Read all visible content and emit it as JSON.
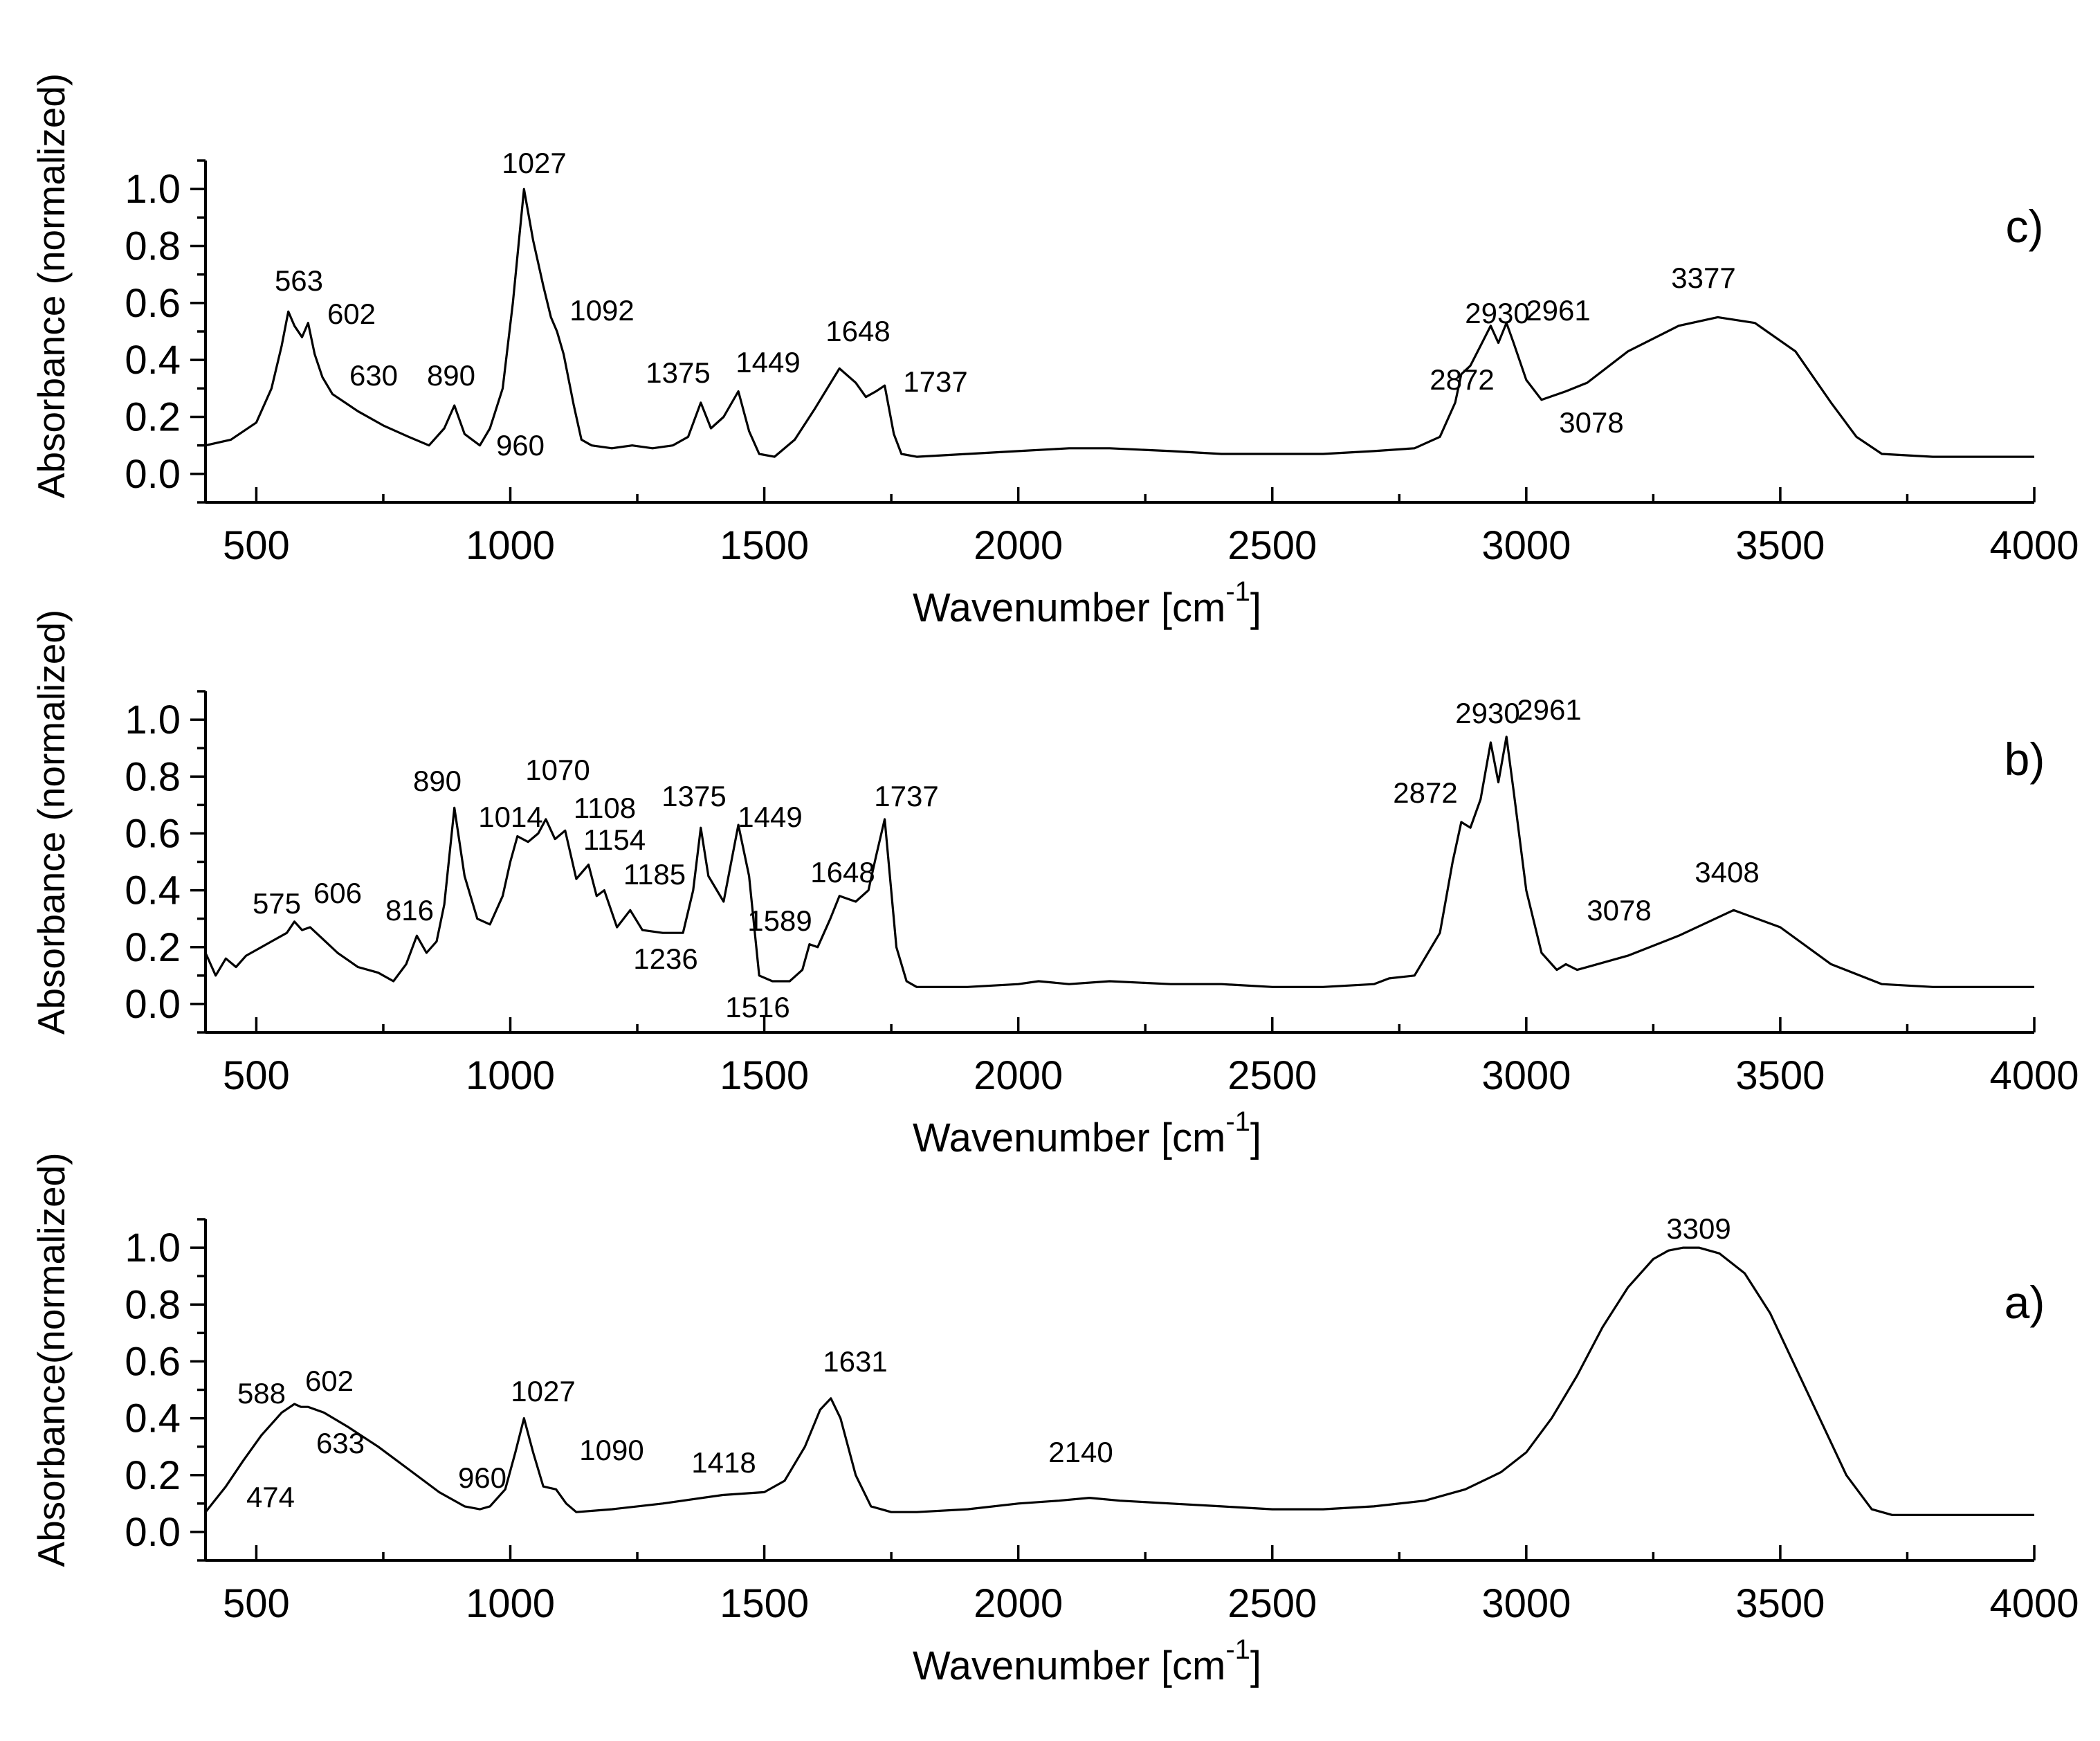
{
  "chart_data": [
    {
      "type": "line",
      "panel": "c)",
      "xlabel_main": "Wavenumber [cm",
      "xlabel_sup": "-1",
      "xlabel_end": "]",
      "ylabel": "Absorbance (normalized)",
      "xlim": [
        400,
        4000
      ],
      "ylim": [
        -0.1,
        1.1
      ],
      "xticks": [
        500,
        1000,
        1500,
        2000,
        2500,
        3000,
        3500,
        4000
      ],
      "yticks": [
        0.0,
        0.2,
        0.4,
        0.6,
        0.8,
        1.0
      ],
      "ytick_labels": [
        "0.0",
        "0.2",
        "0.4",
        "0.6",
        "0.8",
        "1.0"
      ],
      "series": [
        {
          "name": "c",
          "x": [
            400,
            450,
            500,
            530,
            550,
            563,
            575,
            590,
            602,
            615,
            630,
            650,
            700,
            750,
            800,
            840,
            870,
            890,
            910,
            940,
            960,
            985,
            1005,
            1027,
            1045,
            1065,
            1080,
            1092,
            1105,
            1125,
            1140,
            1160,
            1200,
            1240,
            1280,
            1320,
            1350,
            1375,
            1395,
            1420,
            1449,
            1470,
            1490,
            1520,
            1560,
            1600,
            1648,
            1680,
            1700,
            1720,
            1737,
            1755,
            1770,
            1800,
            1900,
            2000,
            2100,
            2180,
            2300,
            2400,
            2500,
            2600,
            2700,
            2780,
            2830,
            2860,
            2872,
            2890,
            2910,
            2930,
            2945,
            2961,
            2975,
            3000,
            3030,
            3078,
            3120,
            3200,
            3300,
            3377,
            3450,
            3530,
            3600,
            3650,
            3700,
            3800,
            4000
          ],
          "y": [
            0.1,
            0.12,
            0.18,
            0.3,
            0.45,
            0.57,
            0.52,
            0.48,
            0.53,
            0.42,
            0.34,
            0.28,
            0.22,
            0.17,
            0.13,
            0.1,
            0.16,
            0.24,
            0.14,
            0.1,
            0.16,
            0.3,
            0.6,
            1.0,
            0.82,
            0.66,
            0.55,
            0.5,
            0.42,
            0.24,
            0.12,
            0.1,
            0.09,
            0.1,
            0.09,
            0.1,
            0.13,
            0.25,
            0.16,
            0.2,
            0.29,
            0.15,
            0.07,
            0.06,
            0.12,
            0.23,
            0.37,
            0.32,
            0.27,
            0.29,
            0.31,
            0.14,
            0.07,
            0.06,
            0.07,
            0.08,
            0.09,
            0.09,
            0.08,
            0.07,
            0.07,
            0.07,
            0.08,
            0.09,
            0.13,
            0.25,
            0.35,
            0.38,
            0.45,
            0.52,
            0.46,
            0.53,
            0.46,
            0.33,
            0.26,
            0.29,
            0.32,
            0.43,
            0.52,
            0.55,
            0.53,
            0.43,
            0.25,
            0.13,
            0.07,
            0.06,
            0.06
          ]
        }
      ],
      "annotations": [
        {
          "label": "563"
        },
        {
          "label": "602"
        },
        {
          "label": "630"
        },
        {
          "label": "890"
        },
        {
          "label": "960"
        },
        {
          "label": "1027"
        },
        {
          "label": "1092"
        },
        {
          "label": "1375"
        },
        {
          "label": "1449"
        },
        {
          "label": "1648"
        },
        {
          "label": "1737"
        },
        {
          "label": "2872"
        },
        {
          "label": "2930"
        },
        {
          "label": "2961"
        },
        {
          "label": "3078"
        },
        {
          "label": "3377"
        }
      ]
    },
    {
      "type": "line",
      "panel": "b)",
      "xlabel_main": "Wavenumber [cm",
      "xlabel_sup": "-1",
      "xlabel_end": "]",
      "ylabel": "Absorbance (normalized)",
      "xlim": [
        400,
        4000
      ],
      "ylim": [
        -0.1,
        1.1
      ],
      "xticks": [
        500,
        1000,
        1500,
        2000,
        2500,
        3000,
        3500,
        4000
      ],
      "yticks": [
        0.0,
        0.2,
        0.4,
        0.6,
        0.8,
        1.0
      ],
      "ytick_labels": [
        "0.0",
        "0.2",
        "0.4",
        "0.6",
        "0.8",
        "1.0"
      ],
      "series": [
        {
          "name": "b",
          "x": [
            400,
            420,
            440,
            460,
            480,
            500,
            530,
            560,
            575,
            590,
            606,
            630,
            660,
            700,
            740,
            770,
            795,
            816,
            835,
            855,
            870,
            890,
            910,
            935,
            960,
            985,
            1000,
            1014,
            1035,
            1055,
            1070,
            1088,
            1108,
            1130,
            1154,
            1170,
            1185,
            1210,
            1236,
            1260,
            1300,
            1340,
            1360,
            1375,
            1390,
            1420,
            1449,
            1470,
            1490,
            1516,
            1550,
            1575,
            1589,
            1605,
            1630,
            1648,
            1680,
            1705,
            1720,
            1737,
            1760,
            1780,
            1800,
            1900,
            2000,
            2040,
            2100,
            2180,
            2300,
            2400,
            2500,
            2600,
            2700,
            2730,
            2780,
            2830,
            2855,
            2872,
            2890,
            2910,
            2930,
            2945,
            2961,
            2975,
            3000,
            3030,
            3060,
            3078,
            3100,
            3200,
            3300,
            3408,
            3500,
            3600,
            3700,
            3800,
            4000
          ],
          "y": [
            0.18,
            0.1,
            0.16,
            0.13,
            0.17,
            0.19,
            0.22,
            0.25,
            0.29,
            0.26,
            0.27,
            0.23,
            0.18,
            0.13,
            0.11,
            0.08,
            0.14,
            0.24,
            0.18,
            0.22,
            0.35,
            0.69,
            0.45,
            0.3,
            0.28,
            0.38,
            0.5,
            0.59,
            0.57,
            0.6,
            0.65,
            0.58,
            0.61,
            0.44,
            0.49,
            0.38,
            0.4,
            0.27,
            0.33,
            0.26,
            0.25,
            0.25,
            0.4,
            0.62,
            0.45,
            0.36,
            0.63,
            0.45,
            0.1,
            0.08,
            0.08,
            0.12,
            0.21,
            0.2,
            0.3,
            0.38,
            0.36,
            0.4,
            0.52,
            0.65,
            0.2,
            0.08,
            0.06,
            0.06,
            0.07,
            0.08,
            0.07,
            0.08,
            0.07,
            0.07,
            0.06,
            0.06,
            0.07,
            0.09,
            0.1,
            0.25,
            0.5,
            0.64,
            0.62,
            0.72,
            0.92,
            0.78,
            0.94,
            0.75,
            0.4,
            0.18,
            0.12,
            0.14,
            0.12,
            0.17,
            0.24,
            0.33,
            0.27,
            0.14,
            0.07,
            0.06,
            0.06
          ]
        }
      ],
      "annotations": [
        {
          "label": "575"
        },
        {
          "label": "606"
        },
        {
          "label": "816"
        },
        {
          "label": "890"
        },
        {
          "label": "1014"
        },
        {
          "label": "1070"
        },
        {
          "label": "1108"
        },
        {
          "label": "1154"
        },
        {
          "label": "1185"
        },
        {
          "label": "1236"
        },
        {
          "label": "1375"
        },
        {
          "label": "1449"
        },
        {
          "label": "1516"
        },
        {
          "label": "1589"
        },
        {
          "label": "1648"
        },
        {
          "label": "1737"
        },
        {
          "label": "2872"
        },
        {
          "label": "2930"
        },
        {
          "label": "2961"
        },
        {
          "label": "3078"
        },
        {
          "label": "3408"
        }
      ]
    },
    {
      "type": "line",
      "panel": "a)",
      "xlabel_main": "Wavenumber [cm",
      "xlabel_sup": "-1",
      "xlabel_end": "]",
      "ylabel": "Absorbance(normalized)",
      "xlim": [
        400,
        4000
      ],
      "ylim": [
        -0.1,
        1.1
      ],
      "xticks": [
        500,
        1000,
        1500,
        2000,
        2500,
        3000,
        3500,
        4000
      ],
      "yticks": [
        0.0,
        0.2,
        0.4,
        0.6,
        0.8,
        1.0
      ],
      "ytick_labels": [
        "0.0",
        "0.2",
        "0.4",
        "0.6",
        "0.8",
        "1.0"
      ],
      "series": [
        {
          "name": "a",
          "x": [
            400,
            440,
            474,
            510,
            550,
            575,
            588,
            602,
            633,
            680,
            740,
            800,
            860,
            910,
            940,
            960,
            990,
            1010,
            1027,
            1045,
            1065,
            1090,
            1110,
            1130,
            1200,
            1300,
            1418,
            1500,
            1540,
            1580,
            1610,
            1631,
            1650,
            1680,
            1710,
            1750,
            1800,
            1900,
            2000,
            2080,
            2140,
            2200,
            2300,
            2400,
            2500,
            2600,
            2700,
            2800,
            2880,
            2950,
            3000,
            3050,
            3100,
            3150,
            3200,
            3250,
            3280,
            3309,
            3340,
            3380,
            3430,
            3480,
            3530,
            3580,
            3630,
            3680,
            3720,
            3800,
            4000
          ],
          "y": [
            0.07,
            0.16,
            0.25,
            0.34,
            0.42,
            0.45,
            0.44,
            0.44,
            0.42,
            0.37,
            0.3,
            0.22,
            0.14,
            0.09,
            0.08,
            0.09,
            0.15,
            0.28,
            0.4,
            0.28,
            0.16,
            0.15,
            0.1,
            0.07,
            0.08,
            0.1,
            0.13,
            0.14,
            0.18,
            0.3,
            0.43,
            0.47,
            0.4,
            0.2,
            0.09,
            0.07,
            0.07,
            0.08,
            0.1,
            0.11,
            0.12,
            0.11,
            0.1,
            0.09,
            0.08,
            0.08,
            0.09,
            0.11,
            0.15,
            0.21,
            0.28,
            0.4,
            0.55,
            0.72,
            0.86,
            0.96,
            0.99,
            1.0,
            1.0,
            0.98,
            0.91,
            0.77,
            0.58,
            0.39,
            0.2,
            0.08,
            0.06,
            0.06,
            0.06
          ]
        }
      ],
      "annotations": [
        {
          "label": "474"
        },
        {
          "label": "588"
        },
        {
          "label": "602"
        },
        {
          "label": "633"
        },
        {
          "label": "960"
        },
        {
          "label": "1027"
        },
        {
          "label": "1090"
        },
        {
          "label": "1418"
        },
        {
          "label": "1631"
        },
        {
          "label": "2140"
        },
        {
          "label": "3309"
        }
      ]
    }
  ]
}
